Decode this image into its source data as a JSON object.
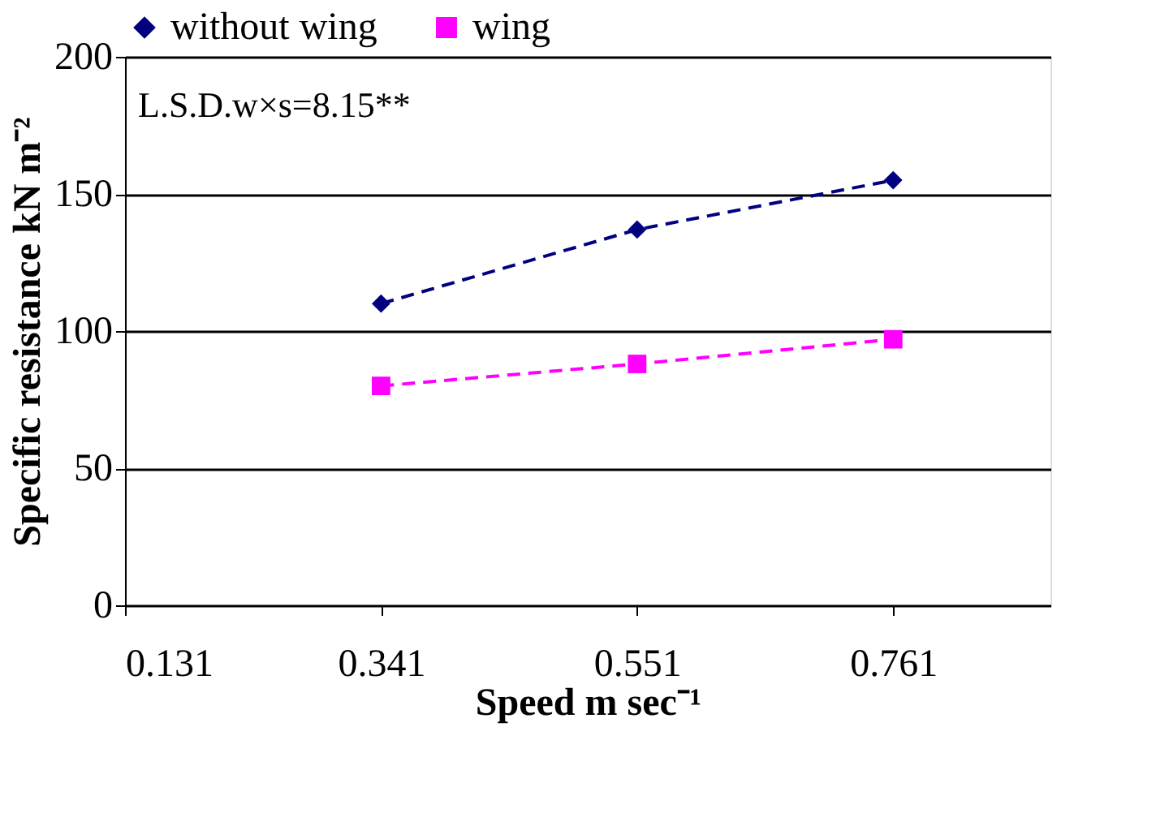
{
  "chart_data": {
    "type": "line",
    "xlabel": "Speed m sec⁻¹",
    "ylabel": "Specific resistance kN m⁻²",
    "x": [
      0.341,
      0.551,
      0.761
    ],
    "series": [
      {
        "name": "without wing",
        "color": "#000080",
        "values": [
          110,
          137,
          155
        ],
        "marker": "diamond"
      },
      {
        "name": "wing",
        "color": "#ff00ff",
        "values": [
          80,
          88,
          97
        ],
        "marker": "square"
      }
    ],
    "xlim": [
      0.131,
      0.89
    ],
    "xticks": [
      0.131,
      0.341,
      0.551,
      0.761
    ],
    "ylim": [
      0,
      200
    ],
    "yticks": [
      0,
      50,
      100,
      150,
      200
    ],
    "grid": "y",
    "legend": "top",
    "line_style": "dashed",
    "annotations": [
      "L.S.D.w×s=8.15**"
    ]
  }
}
